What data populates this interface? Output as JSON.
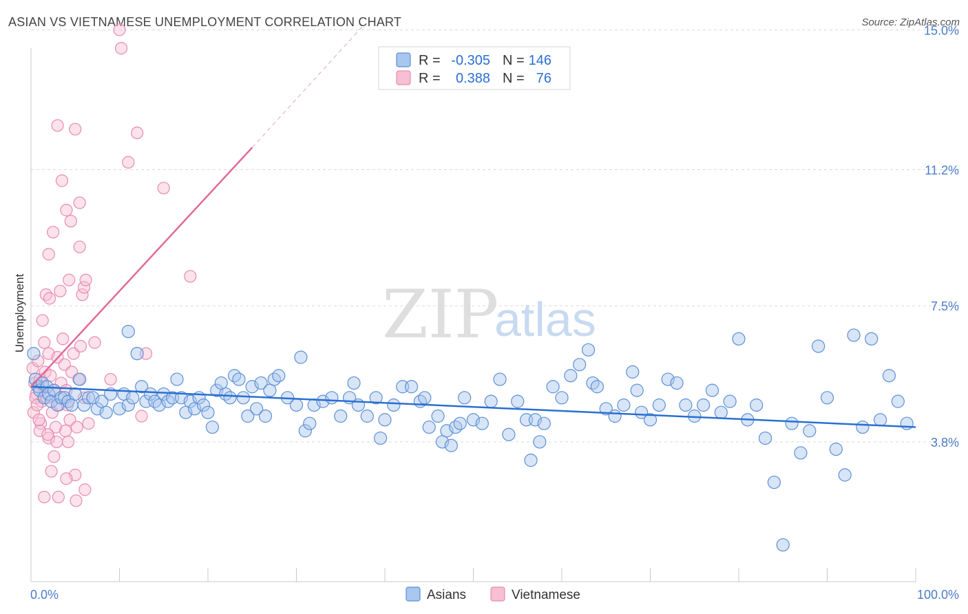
{
  "title": "ASIAN VS VIETNAMESE UNEMPLOYMENT CORRELATION CHART",
  "source": "Source: ZipAtlas.com",
  "watermark": {
    "part1": "ZIP",
    "part2": "atlas"
  },
  "colors": {
    "asians": "#5b8fd6",
    "asians_fill": "#a9c6ee",
    "asians_line": "#2a6fd1",
    "vietnamese": "#e98ab0",
    "vietnamese_fill": "#f6bfd3",
    "vietnamese_line": "#e06a98",
    "tick": "#4a7cc9",
    "grid": "#d9d9d9"
  },
  "stats": {
    "asians": {
      "r_label": "R =",
      "r": "-0.305",
      "n_label": "N =",
      "n": "146"
    },
    "vietnamese": {
      "r_label": "R =",
      "r": "0.388",
      "n_label": "N =",
      "n": "76"
    }
  },
  "chart_data": {
    "type": "scatter",
    "title": "ASIAN VS VIETNAMESE UNEMPLOYMENT CORRELATION CHART",
    "xlabel": "",
    "ylabel": "Unemployment",
    "xlim": [
      0,
      100
    ],
    "ylim": [
      0,
      15.4
    ],
    "x_tick_labels": [
      "0.0%",
      "100.0%"
    ],
    "y_ticks": [
      3.8,
      7.5,
      11.2,
      15.0
    ],
    "y_tick_labels": [
      "3.8%",
      "7.5%",
      "11.2%",
      "15.0%"
    ],
    "grid": true,
    "legend_position": "bottom-center",
    "series": [
      {
        "name": "Asians",
        "trend": {
          "x": [
            0,
            100
          ],
          "y": [
            5.3,
            4.2
          ]
        },
        "points": [
          [
            0.3,
            6.2
          ],
          [
            0.5,
            5.5
          ],
          [
            0.8,
            5.3
          ],
          [
            1.0,
            5.2
          ],
          [
            1.3,
            5.4
          ],
          [
            1.5,
            5.0
          ],
          [
            1.8,
            5.3
          ],
          [
            2.0,
            5.1
          ],
          [
            2.3,
            4.9
          ],
          [
            2.6,
            5.2
          ],
          [
            3.0,
            4.8
          ],
          [
            3.4,
            5.0
          ],
          [
            3.8,
            5.0
          ],
          [
            4.2,
            4.9
          ],
          [
            4.6,
            4.8
          ],
          [
            5.0,
            5.1
          ],
          [
            5.5,
            5.5
          ],
          [
            6.0,
            4.8
          ],
          [
            6.5,
            5.0
          ],
          [
            7.0,
            5.0
          ],
          [
            7.5,
            4.7
          ],
          [
            8.0,
            4.9
          ],
          [
            8.5,
            4.6
          ],
          [
            9.0,
            5.1
          ],
          [
            10.0,
            4.7
          ],
          [
            10.5,
            5.1
          ],
          [
            11.0,
            4.8
          ],
          [
            11.5,
            5.0
          ],
          [
            12.5,
            5.3
          ],
          [
            13.0,
            4.9
          ],
          [
            13.5,
            5.1
          ],
          [
            14.0,
            4.9
          ],
          [
            14.5,
            4.8
          ],
          [
            15.0,
            5.1
          ],
          [
            15.5,
            4.9
          ],
          [
            16.0,
            5.0
          ],
          [
            16.5,
            5.5
          ],
          [
            17.0,
            5.0
          ],
          [
            17.5,
            4.6
          ],
          [
            18.0,
            4.9
          ],
          [
            18.5,
            4.7
          ],
          [
            19.0,
            5.0
          ],
          [
            19.5,
            4.8
          ],
          [
            20.0,
            4.6
          ],
          [
            20.5,
            4.2
          ],
          [
            21.0,
            5.2
          ],
          [
            21.5,
            5.4
          ],
          [
            22.0,
            5.1
          ],
          [
            22.5,
            5.0
          ],
          [
            23.0,
            5.6
          ],
          [
            23.5,
            5.5
          ],
          [
            24.0,
            5.0
          ],
          [
            24.5,
            4.5
          ],
          [
            25.0,
            5.3
          ],
          [
            25.5,
            4.7
          ],
          [
            26.0,
            5.4
          ],
          [
            26.5,
            4.5
          ],
          [
            27.0,
            5.2
          ],
          [
            27.5,
            5.5
          ],
          [
            28.0,
            5.6
          ],
          [
            29.0,
            5.0
          ],
          [
            30.0,
            4.8
          ],
          [
            30.5,
            6.1
          ],
          [
            31.0,
            4.1
          ],
          [
            31.5,
            4.3
          ],
          [
            32.0,
            4.8
          ],
          [
            33.0,
            4.9
          ],
          [
            34.0,
            5.0
          ],
          [
            35.0,
            4.5
          ],
          [
            36.0,
            5.0
          ],
          [
            36.5,
            5.4
          ],
          [
            37.0,
            4.8
          ],
          [
            38.0,
            4.5
          ],
          [
            39.0,
            5.0
          ],
          [
            39.5,
            3.9
          ],
          [
            40.0,
            4.4
          ],
          [
            41.0,
            4.8
          ],
          [
            42.0,
            5.3
          ],
          [
            43.0,
            5.3
          ],
          [
            44.0,
            4.9
          ],
          [
            44.5,
            5.0
          ],
          [
            45.0,
            4.2
          ],
          [
            46.0,
            4.5
          ],
          [
            46.5,
            3.8
          ],
          [
            47.0,
            4.1
          ],
          [
            47.5,
            3.7
          ],
          [
            48.0,
            4.2
          ],
          [
            48.5,
            4.3
          ],
          [
            49.0,
            5.0
          ],
          [
            50.0,
            4.4
          ],
          [
            51.0,
            4.3
          ],
          [
            52.0,
            4.9
          ],
          [
            53.0,
            5.5
          ],
          [
            54.0,
            4.0
          ],
          [
            55.0,
            4.9
          ],
          [
            56.0,
            4.4
          ],
          [
            56.5,
            3.3
          ],
          [
            57.0,
            4.4
          ],
          [
            57.5,
            3.8
          ],
          [
            58.0,
            4.3
          ],
          [
            59.0,
            5.3
          ],
          [
            60.0,
            5.0
          ],
          [
            61.0,
            5.6
          ],
          [
            62.0,
            5.9
          ],
          [
            63.0,
            6.3
          ],
          [
            63.5,
            5.4
          ],
          [
            64.0,
            5.3
          ],
          [
            65.0,
            4.7
          ],
          [
            66.0,
            4.5
          ],
          [
            67.0,
            4.8
          ],
          [
            68.0,
            5.7
          ],
          [
            68.5,
            5.2
          ],
          [
            69.0,
            4.6
          ],
          [
            70.0,
            4.4
          ],
          [
            71.0,
            4.8
          ],
          [
            72.0,
            5.5
          ],
          [
            73.0,
            5.4
          ],
          [
            74.0,
            4.8
          ],
          [
            75.0,
            4.5
          ],
          [
            76.0,
            4.8
          ],
          [
            77.0,
            5.2
          ],
          [
            78.0,
            4.6
          ],
          [
            79.0,
            4.9
          ],
          [
            80.0,
            6.6
          ],
          [
            82.0,
            4.8
          ],
          [
            85.0,
            1.0
          ],
          [
            94.0,
            4.2
          ],
          [
            95.0,
            6.6
          ],
          [
            96.0,
            4.4
          ],
          [
            98.0,
            4.9
          ],
          [
            99.0,
            4.3
          ],
          [
            88.0,
            4.1
          ],
          [
            90.0,
            5.0
          ],
          [
            91.0,
            3.6
          ],
          [
            92.0,
            2.9
          ],
          [
            86.0,
            4.3
          ],
          [
            87.0,
            3.5
          ],
          [
            83.0,
            3.9
          ],
          [
            84.0,
            2.7
          ],
          [
            81.0,
            4.4
          ],
          [
            89.0,
            6.4
          ],
          [
            93.0,
            6.7
          ],
          [
            97.0,
            5.6
          ],
          [
            11.0,
            6.8
          ],
          [
            12.0,
            6.2
          ]
        ]
      },
      {
        "name": "Vietnamese",
        "trend": {
          "x": [
            0,
            25
          ],
          "y": [
            5.3,
            11.8
          ]
        },
        "trend_dashed": {
          "x": [
            25,
            37.5
          ],
          "y": [
            11.8,
            15.1
          ]
        },
        "points": [
          [
            0.2,
            5.8
          ],
          [
            0.4,
            5.4
          ],
          [
            0.6,
            5.1
          ],
          [
            0.8,
            6.0
          ],
          [
            1.0,
            5.5
          ],
          [
            1.2,
            4.9
          ],
          [
            1.4,
            5.3
          ],
          [
            1.6,
            5.7
          ],
          [
            1.8,
            5.0
          ],
          [
            2.0,
            6.2
          ],
          [
            2.2,
            5.6
          ],
          [
            2.4,
            4.6
          ],
          [
            2.6,
            5.2
          ],
          [
            0.3,
            4.6
          ],
          [
            0.5,
            5.0
          ],
          [
            0.7,
            4.8
          ],
          [
            1.1,
            4.3
          ],
          [
            1.3,
            7.1
          ],
          [
            1.5,
            6.5
          ],
          [
            1.7,
            7.8
          ],
          [
            2.0,
            3.9
          ],
          [
            2.3,
            3.0
          ],
          [
            2.6,
            3.4
          ],
          [
            2.8,
            4.2
          ],
          [
            3.0,
            6.1
          ],
          [
            3.2,
            4.8
          ],
          [
            3.4,
            5.4
          ],
          [
            3.6,
            6.6
          ],
          [
            3.8,
            5.9
          ],
          [
            4.0,
            5.2
          ],
          [
            4.2,
            3.8
          ],
          [
            4.4,
            4.4
          ],
          [
            4.6,
            5.7
          ],
          [
            4.8,
            6.2
          ],
          [
            5.0,
            2.9
          ],
          [
            5.2,
            4.2
          ],
          [
            5.4,
            5.5
          ],
          [
            5.6,
            6.4
          ],
          [
            5.8,
            7.8
          ],
          [
            6.0,
            5.0
          ],
          [
            6.5,
            4.3
          ],
          [
            1.0,
            4.1
          ],
          [
            1.5,
            2.3
          ],
          [
            2.0,
            8.9
          ],
          [
            2.5,
            9.5
          ],
          [
            3.0,
            12.4
          ],
          [
            3.5,
            10.9
          ],
          [
            4.0,
            10.1
          ],
          [
            4.5,
            9.8
          ],
          [
            5.0,
            12.3
          ],
          [
            5.5,
            10.3
          ],
          [
            6.0,
            8.0
          ],
          [
            4.3,
            8.2
          ],
          [
            3.3,
            7.9
          ],
          [
            2.1,
            7.7
          ],
          [
            4.1,
            4.8
          ],
          [
            3.1,
            2.3
          ],
          [
            5.1,
            2.2
          ],
          [
            6.1,
            2.5
          ],
          [
            4.0,
            2.8
          ],
          [
            3.9,
            4.1
          ],
          [
            2.9,
            3.8
          ],
          [
            1.9,
            4.0
          ],
          [
            0.9,
            4.4
          ],
          [
            10.0,
            15.0
          ],
          [
            10.2,
            14.5
          ],
          [
            12.0,
            12.2
          ],
          [
            11.0,
            11.4
          ],
          [
            15.0,
            10.7
          ],
          [
            18.0,
            8.3
          ],
          [
            13.0,
            6.2
          ],
          [
            12.5,
            4.5
          ],
          [
            9.0,
            5.5
          ],
          [
            5.5,
            9.1
          ],
          [
            6.2,
            8.2
          ],
          [
            7.2,
            6.5
          ]
        ]
      }
    ]
  },
  "legend": {
    "asians": "Asians",
    "vietnamese": "Vietnamese"
  }
}
